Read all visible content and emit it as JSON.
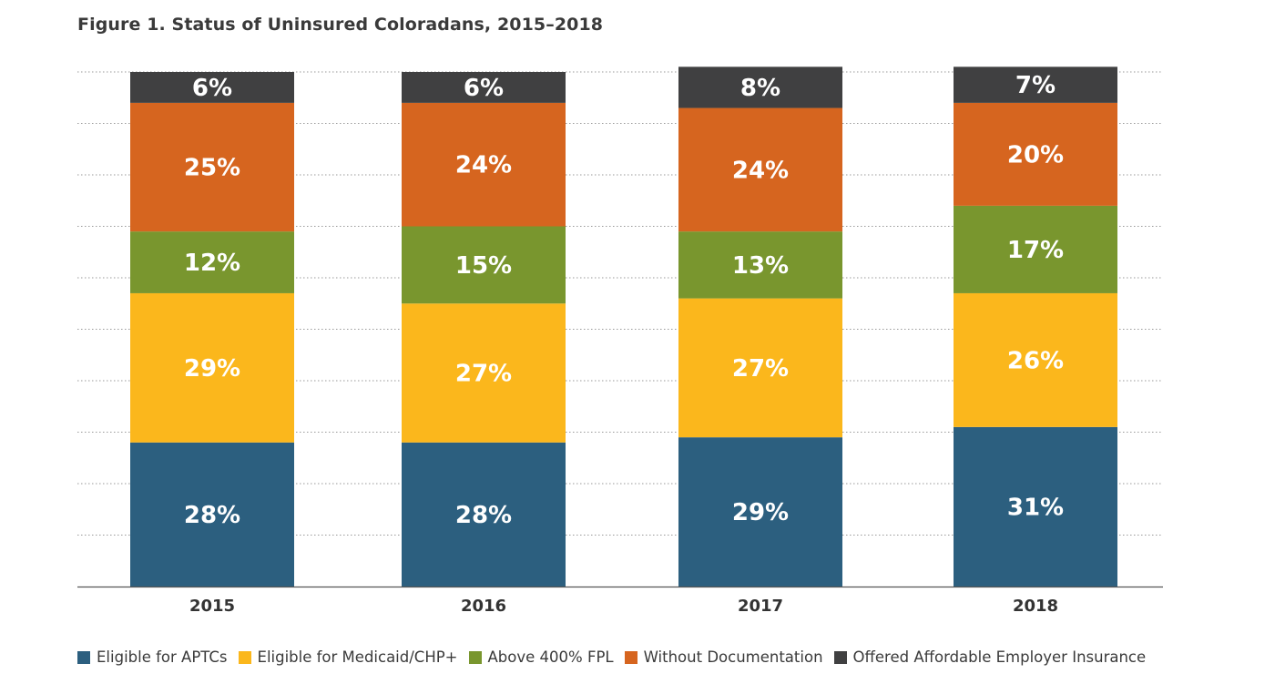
{
  "page": {
    "title": "Figure 1. Status of Uninsured Coloradans, 2015–2018"
  },
  "chart_data": {
    "type": "bar",
    "stacked": true,
    "title": "Figure 1. Status of Uninsured Coloradans, 2015–2018",
    "categories": [
      "2015",
      "2016",
      "2017",
      "2018"
    ],
    "ylim": [
      0,
      100
    ],
    "grid": true,
    "legend_position": "bottom",
    "series": [
      {
        "name": "Eligible for APTCs",
        "color": "#2c5f7f",
        "values": [
          28,
          28,
          29,
          31
        ],
        "labels": [
          "28%",
          "28%",
          "29%",
          "31%"
        ]
      },
      {
        "name": "Eligible for Medicaid/CHP+",
        "color": "#fbb71c",
        "values": [
          29,
          27,
          27,
          26
        ],
        "labels": [
          "29%",
          "27%",
          "27%",
          "26%"
        ]
      },
      {
        "name": "Above 400% FPL",
        "color": "#79962e",
        "values": [
          12,
          15,
          13,
          17
        ],
        "labels": [
          "12%",
          "15%",
          "13%",
          "17%"
        ]
      },
      {
        "name": "Without Documentation",
        "color": "#d6651f",
        "values": [
          25,
          24,
          24,
          20
        ],
        "labels": [
          "25%",
          "24%",
          "24%",
          "20%"
        ]
      },
      {
        "name": "Offered Affordable Employer Insurance",
        "color": "#404041",
        "values": [
          6,
          6,
          8,
          7
        ],
        "labels": [
          "6%",
          "6%",
          "8%",
          "7%"
        ]
      }
    ]
  }
}
